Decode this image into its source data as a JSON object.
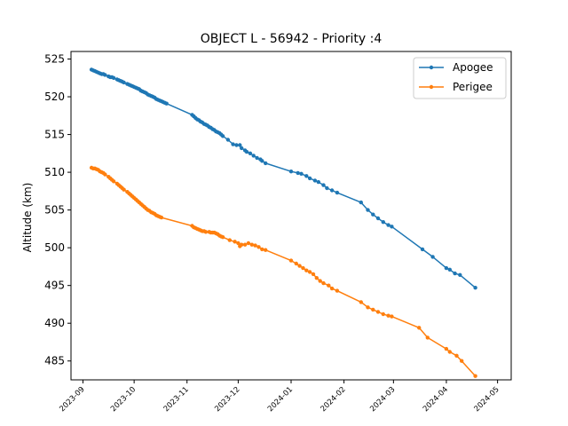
{
  "chart_data": {
    "type": "line",
    "title": "OBJECT L - 56942 - Priority :4",
    "xlabel": "",
    "ylabel": "Altitude (km)",
    "ylim": [
      482.5,
      526
    ],
    "y_ticks": [
      485,
      490,
      495,
      500,
      505,
      510,
      515,
      520,
      525
    ],
    "x_ticks": [
      "2023-09",
      "2023-10",
      "2023-11",
      "2023-12",
      "2024-01",
      "2024-02",
      "2024-03",
      "2024-04",
      "2024-05"
    ],
    "xlim": [
      "2023-08-25",
      "2024-05-09"
    ],
    "legend_position": "top-right",
    "grid": false,
    "series": [
      {
        "name": "Apogee",
        "color": "#1f77b4",
        "points": [
          [
            "2023-09-06",
            523.6
          ],
          [
            "2023-09-07",
            523.5
          ],
          [
            "2023-09-08",
            523.4
          ],
          [
            "2023-09-09",
            523.3
          ],
          [
            "2023-09-10",
            523.2
          ],
          [
            "2023-09-11",
            523.1
          ],
          [
            "2023-09-12",
            523.0
          ],
          [
            "2023-09-13",
            523.0
          ],
          [
            "2023-09-14",
            522.9
          ],
          [
            "2023-09-16",
            522.7
          ],
          [
            "2023-09-17",
            522.6
          ],
          [
            "2023-09-18",
            522.6
          ],
          [
            "2023-09-19",
            522.5
          ],
          [
            "2023-09-21",
            522.3
          ],
          [
            "2023-09-22",
            522.2
          ],
          [
            "2023-09-23",
            522.1
          ],
          [
            "2023-09-24",
            522.0
          ],
          [
            "2023-09-25",
            521.9
          ],
          [
            "2023-09-27",
            521.7
          ],
          [
            "2023-09-28",
            521.6
          ],
          [
            "2023-09-29",
            521.5
          ],
          [
            "2023-09-30",
            521.4
          ],
          [
            "2023-10-01",
            521.3
          ],
          [
            "2023-10-02",
            521.2
          ],
          [
            "2023-10-03",
            521.1
          ],
          [
            "2023-10-04",
            521.0
          ],
          [
            "2023-10-05",
            520.8
          ],
          [
            "2023-10-06",
            520.7
          ],
          [
            "2023-10-07",
            520.6
          ],
          [
            "2023-10-08",
            520.5
          ],
          [
            "2023-10-09",
            520.3
          ],
          [
            "2023-10-10",
            520.2
          ],
          [
            "2023-10-11",
            520.1
          ],
          [
            "2023-10-12",
            520.0
          ],
          [
            "2023-10-13",
            519.9
          ],
          [
            "2023-10-14",
            519.7
          ],
          [
            "2023-10-15",
            519.6
          ],
          [
            "2023-10-16",
            519.5
          ],
          [
            "2023-10-17",
            519.4
          ],
          [
            "2023-10-18",
            519.3
          ],
          [
            "2023-10-19",
            519.2
          ],
          [
            "2023-10-20",
            519.1
          ],
          [
            "2023-11-04",
            517.6
          ],
          [
            "2023-11-05",
            517.4
          ],
          [
            "2023-11-06",
            517.2
          ],
          [
            "2023-11-07",
            517.0
          ],
          [
            "2023-11-08",
            516.9
          ],
          [
            "2023-11-09",
            516.7
          ],
          [
            "2023-11-10",
            516.6
          ],
          [
            "2023-11-11",
            516.4
          ],
          [
            "2023-11-12",
            516.3
          ],
          [
            "2023-11-13",
            516.2
          ],
          [
            "2023-11-14",
            516.0
          ],
          [
            "2023-11-15",
            515.9
          ],
          [
            "2023-11-16",
            515.7
          ],
          [
            "2023-11-17",
            515.6
          ],
          [
            "2023-11-18",
            515.4
          ],
          [
            "2023-11-19",
            515.3
          ],
          [
            "2023-11-20",
            515.2
          ],
          [
            "2023-11-21",
            515.0
          ],
          [
            "2023-11-22",
            514.8
          ],
          [
            "2023-11-25",
            514.3
          ],
          [
            "2023-11-28",
            513.7
          ],
          [
            "2023-11-30",
            513.6
          ],
          [
            "2023-12-02",
            513.6
          ],
          [
            "2023-12-03",
            513.2
          ],
          [
            "2023-12-05",
            512.9
          ],
          [
            "2023-12-06",
            512.7
          ],
          [
            "2023-12-08",
            512.5
          ],
          [
            "2023-12-10",
            512.2
          ],
          [
            "2023-12-12",
            511.9
          ],
          [
            "2023-12-14",
            511.7
          ],
          [
            "2023-12-15",
            511.5
          ],
          [
            "2023-12-17",
            511.2
          ],
          [
            "2024-01-01",
            510.1
          ],
          [
            "2024-01-05",
            509.9
          ],
          [
            "2024-01-07",
            509.8
          ],
          [
            "2024-01-10",
            509.5
          ],
          [
            "2024-01-12",
            509.2
          ],
          [
            "2024-01-15",
            508.9
          ],
          [
            "2024-01-17",
            508.7
          ],
          [
            "2024-01-20",
            508.3
          ],
          [
            "2024-01-22",
            507.9
          ],
          [
            "2024-01-25",
            507.6
          ],
          [
            "2024-01-28",
            507.3
          ],
          [
            "2024-02-11",
            506.0
          ],
          [
            "2024-02-15",
            505.0
          ],
          [
            "2024-02-18",
            504.4
          ],
          [
            "2024-02-21",
            503.9
          ],
          [
            "2024-02-24",
            503.4
          ],
          [
            "2024-02-27",
            503.0
          ],
          [
            "2024-02-29",
            502.8
          ],
          [
            "2024-03-18",
            499.8
          ],
          [
            "2024-03-24",
            498.8
          ],
          [
            "2024-04-01",
            497.3
          ],
          [
            "2024-04-03",
            497.1
          ],
          [
            "2024-04-06",
            496.6
          ],
          [
            "2024-04-09",
            496.4
          ],
          [
            "2024-04-18",
            494.7
          ]
        ]
      },
      {
        "name": "Perigee",
        "color": "#ff7f0e",
        "points": [
          [
            "2023-09-06",
            510.6
          ],
          [
            "2023-09-07",
            510.5
          ],
          [
            "2023-09-08",
            510.5
          ],
          [
            "2023-09-09",
            510.4
          ],
          [
            "2023-09-10",
            510.3
          ],
          [
            "2023-09-11",
            510.1
          ],
          [
            "2023-09-12",
            510.0
          ],
          [
            "2023-09-13",
            509.9
          ],
          [
            "2023-09-14",
            509.7
          ],
          [
            "2023-09-16",
            509.4
          ],
          [
            "2023-09-17",
            509.2
          ],
          [
            "2023-09-18",
            509.0
          ],
          [
            "2023-09-19",
            508.8
          ],
          [
            "2023-09-21",
            508.5
          ],
          [
            "2023-09-22",
            508.3
          ],
          [
            "2023-09-23",
            508.1
          ],
          [
            "2023-09-24",
            507.9
          ],
          [
            "2023-09-25",
            507.7
          ],
          [
            "2023-09-27",
            507.4
          ],
          [
            "2023-09-28",
            507.2
          ],
          [
            "2023-09-29",
            507.0
          ],
          [
            "2023-09-30",
            506.8
          ],
          [
            "2023-10-01",
            506.6
          ],
          [
            "2023-10-02",
            506.4
          ],
          [
            "2023-10-03",
            506.2
          ],
          [
            "2023-10-04",
            506.0
          ],
          [
            "2023-10-05",
            505.8
          ],
          [
            "2023-10-06",
            505.6
          ],
          [
            "2023-10-07",
            505.4
          ],
          [
            "2023-10-08",
            505.2
          ],
          [
            "2023-10-09",
            505.0
          ],
          [
            "2023-10-10",
            504.9
          ],
          [
            "2023-10-11",
            504.7
          ],
          [
            "2023-10-12",
            504.6
          ],
          [
            "2023-10-13",
            504.5
          ],
          [
            "2023-10-14",
            504.3
          ],
          [
            "2023-10-15",
            504.2
          ],
          [
            "2023-10-16",
            504.1
          ],
          [
            "2023-10-17",
            504.0
          ],
          [
            "2023-11-04",
            502.9
          ],
          [
            "2023-11-05",
            502.7
          ],
          [
            "2023-11-06",
            502.6
          ],
          [
            "2023-11-07",
            502.5
          ],
          [
            "2023-11-08",
            502.4
          ],
          [
            "2023-11-09",
            502.3
          ],
          [
            "2023-11-10",
            502.2
          ],
          [
            "2023-11-11",
            502.2
          ],
          [
            "2023-11-12",
            502.1
          ],
          [
            "2023-11-14",
            502.1
          ],
          [
            "2023-11-15",
            502.0
          ],
          [
            "2023-11-16",
            502.0
          ],
          [
            "2023-11-17",
            502.0
          ],
          [
            "2023-11-18",
            501.9
          ],
          [
            "2023-11-19",
            501.8
          ],
          [
            "2023-11-20",
            501.6
          ],
          [
            "2023-11-21",
            501.5
          ],
          [
            "2023-11-22",
            501.4
          ],
          [
            "2023-11-26",
            501.0
          ],
          [
            "2023-11-29",
            500.8
          ],
          [
            "2023-12-01",
            500.6
          ],
          [
            "2023-12-02",
            500.2
          ],
          [
            "2023-12-03",
            500.4
          ],
          [
            "2023-12-05",
            500.4
          ],
          [
            "2023-12-07",
            500.6
          ],
          [
            "2023-12-09",
            500.4
          ],
          [
            "2023-12-11",
            500.3
          ],
          [
            "2023-12-13",
            500.1
          ],
          [
            "2023-12-15",
            499.8
          ],
          [
            "2023-12-17",
            499.7
          ],
          [
            "2024-01-01",
            498.3
          ],
          [
            "2024-01-04",
            497.9
          ],
          [
            "2024-01-06",
            497.6
          ],
          [
            "2024-01-08",
            497.3
          ],
          [
            "2024-01-10",
            497.0
          ],
          [
            "2024-01-12",
            496.8
          ],
          [
            "2024-01-14",
            496.5
          ],
          [
            "2024-01-16",
            496.0
          ],
          [
            "2024-01-18",
            495.6
          ],
          [
            "2024-01-20",
            495.3
          ],
          [
            "2024-01-23",
            495.0
          ],
          [
            "2024-01-25",
            494.6
          ],
          [
            "2024-01-28",
            494.3
          ],
          [
            "2024-02-11",
            492.8
          ],
          [
            "2024-02-15",
            492.1
          ],
          [
            "2024-02-18",
            491.8
          ],
          [
            "2024-02-21",
            491.5
          ],
          [
            "2024-02-24",
            491.2
          ],
          [
            "2024-02-27",
            491.0
          ],
          [
            "2024-02-29",
            490.9
          ],
          [
            "2024-03-16",
            489.4
          ],
          [
            "2024-03-21",
            488.1
          ],
          [
            "2024-04-01",
            486.6
          ],
          [
            "2024-04-03",
            486.2
          ],
          [
            "2024-04-07",
            485.7
          ],
          [
            "2024-04-10",
            485.0
          ],
          [
            "2024-04-18",
            483.0
          ]
        ]
      }
    ]
  }
}
